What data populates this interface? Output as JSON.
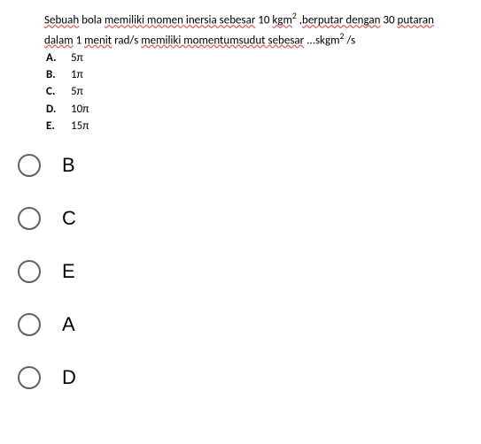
{
  "question": {
    "line1_parts": [
      {
        "t": "Sebuah",
        "wavy": true
      },
      {
        "t": " bola ",
        "wavy": false
      },
      {
        "t": "memiliki momen inersia sebesar",
        "wavy": true
      },
      {
        "t": " 10 ",
        "wavy": false
      },
      {
        "t": "kgm",
        "wavy": true
      },
      {
        "t": "2",
        "sup": true,
        "wavy": false
      },
      {
        "t": " ,",
        "wavy": false
      },
      {
        "t": "berputar dengan",
        "wavy": true
      },
      {
        "t": " 30 ",
        "wavy": false
      },
      {
        "t": "putaran",
        "wavy": true
      }
    ],
    "line2_parts": [
      {
        "t": "dalam",
        "wavy": true
      },
      {
        "t": " 1 ",
        "wavy": false
      },
      {
        "t": "menit",
        "wavy": true
      },
      {
        "t": " rad/s ",
        "wavy": false
      },
      {
        "t": "memiliki momentumsudut sebesar",
        "wavy": true
      },
      {
        "t": " ...skgm",
        "wavy": false
      },
      {
        "t": "2",
        "sup": true,
        "wavy": false
      },
      {
        "t": " /s",
        "wavy": false
      }
    ]
  },
  "sub_options": [
    {
      "letter": "A.",
      "value": "5π"
    },
    {
      "letter": "B.",
      "value": "1π"
    },
    {
      "letter": "C.",
      "value": "5π"
    },
    {
      "letter": "D.",
      "value": "10π"
    },
    {
      "letter": "E.",
      "value": "15π"
    }
  ],
  "radio_options": [
    {
      "label": "B"
    },
    {
      "label": "C"
    },
    {
      "label": "E"
    },
    {
      "label": "A"
    },
    {
      "label": "D"
    }
  ],
  "colors": {
    "background": "#ffffff",
    "text": "#000000",
    "wavy": "#e06666",
    "radio_border": "#616161"
  }
}
